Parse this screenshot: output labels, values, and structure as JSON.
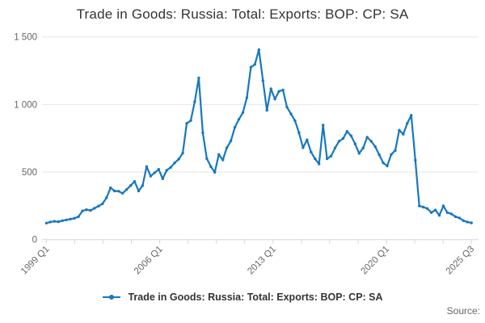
{
  "title": "Trade in Goods: Russia: Total: Exports: BOP: CP: SA",
  "legend": {
    "label": "Trade in Goods: Russia: Total: Exports: BOP: CP: SA",
    "marker": "line-with-dot"
  },
  "source": {
    "label": "Source:"
  },
  "colors": {
    "line": "#1778be",
    "grid": "#e6e6e6",
    "axis": "#ccd6eb",
    "text_muted": "#666666",
    "text_dark": "#333333",
    "background": "#ffffff"
  },
  "chart_data": {
    "type": "line",
    "frequency": "quarterly",
    "x_start": "1999 Q1",
    "x_end": "2025 Q3",
    "n_points": 107,
    "series": [
      {
        "name": "Trade in Goods: Russia: Total: Exports: BOP: CP: SA",
        "values": [
          122,
          130,
          135,
          132,
          140,
          146,
          152,
          158,
          170,
          212,
          221,
          216,
          232,
          248,
          265,
          310,
          383,
          360,
          358,
          343,
          370,
          400,
          430,
          360,
          400,
          540,
          470,
          495,
          520,
          450,
          513,
          535,
          568,
          595,
          640,
          860,
          880,
          1020,
          1196,
          790,
          600,
          540,
          498,
          630,
          590,
          680,
          730,
          830,
          890,
          940,
          1050,
          1276,
          1296,
          1405,
          1176,
          957,
          1116,
          1040,
          1097,
          1107,
          980,
          930,
          880,
          790,
          680,
          738,
          648,
          598,
          560,
          847,
          598,
          618,
          678,
          728,
          748,
          801,
          768,
          708,
          638,
          678,
          758,
          728,
          688,
          628,
          568,
          545,
          630,
          660,
          810,
          780,
          860,
          920,
          588,
          250,
          240,
          230,
          200,
          219,
          179,
          249,
          200,
          190,
          170,
          160,
          140,
          130,
          124
        ]
      }
    ],
    "x_axis": {
      "tick_count": 16,
      "labeled_ticks": [
        {
          "tick_index": 0,
          "data_index": 0,
          "label": "1999 Q1"
        },
        {
          "tick_index": 4,
          "data_index": 28,
          "label": "2006 Q1"
        },
        {
          "tick_index": 8,
          "data_index": 56,
          "label": "2013 Q1"
        },
        {
          "tick_index": 12,
          "data_index": 84,
          "label": "2020 Q1"
        },
        {
          "tick_index": 15,
          "data_index": 106,
          "label": "2025 Q3"
        }
      ],
      "label_rotation_deg": -45
    },
    "y_axis": {
      "ticks": [
        0,
        500,
        1000,
        1500
      ],
      "tick_labels": [
        "0",
        "500",
        "1 000",
        "1 500"
      ],
      "ylim": [
        0,
        1500
      ]
    },
    "grid": "horizontal",
    "legend_position": "bottom",
    "markers": true
  }
}
